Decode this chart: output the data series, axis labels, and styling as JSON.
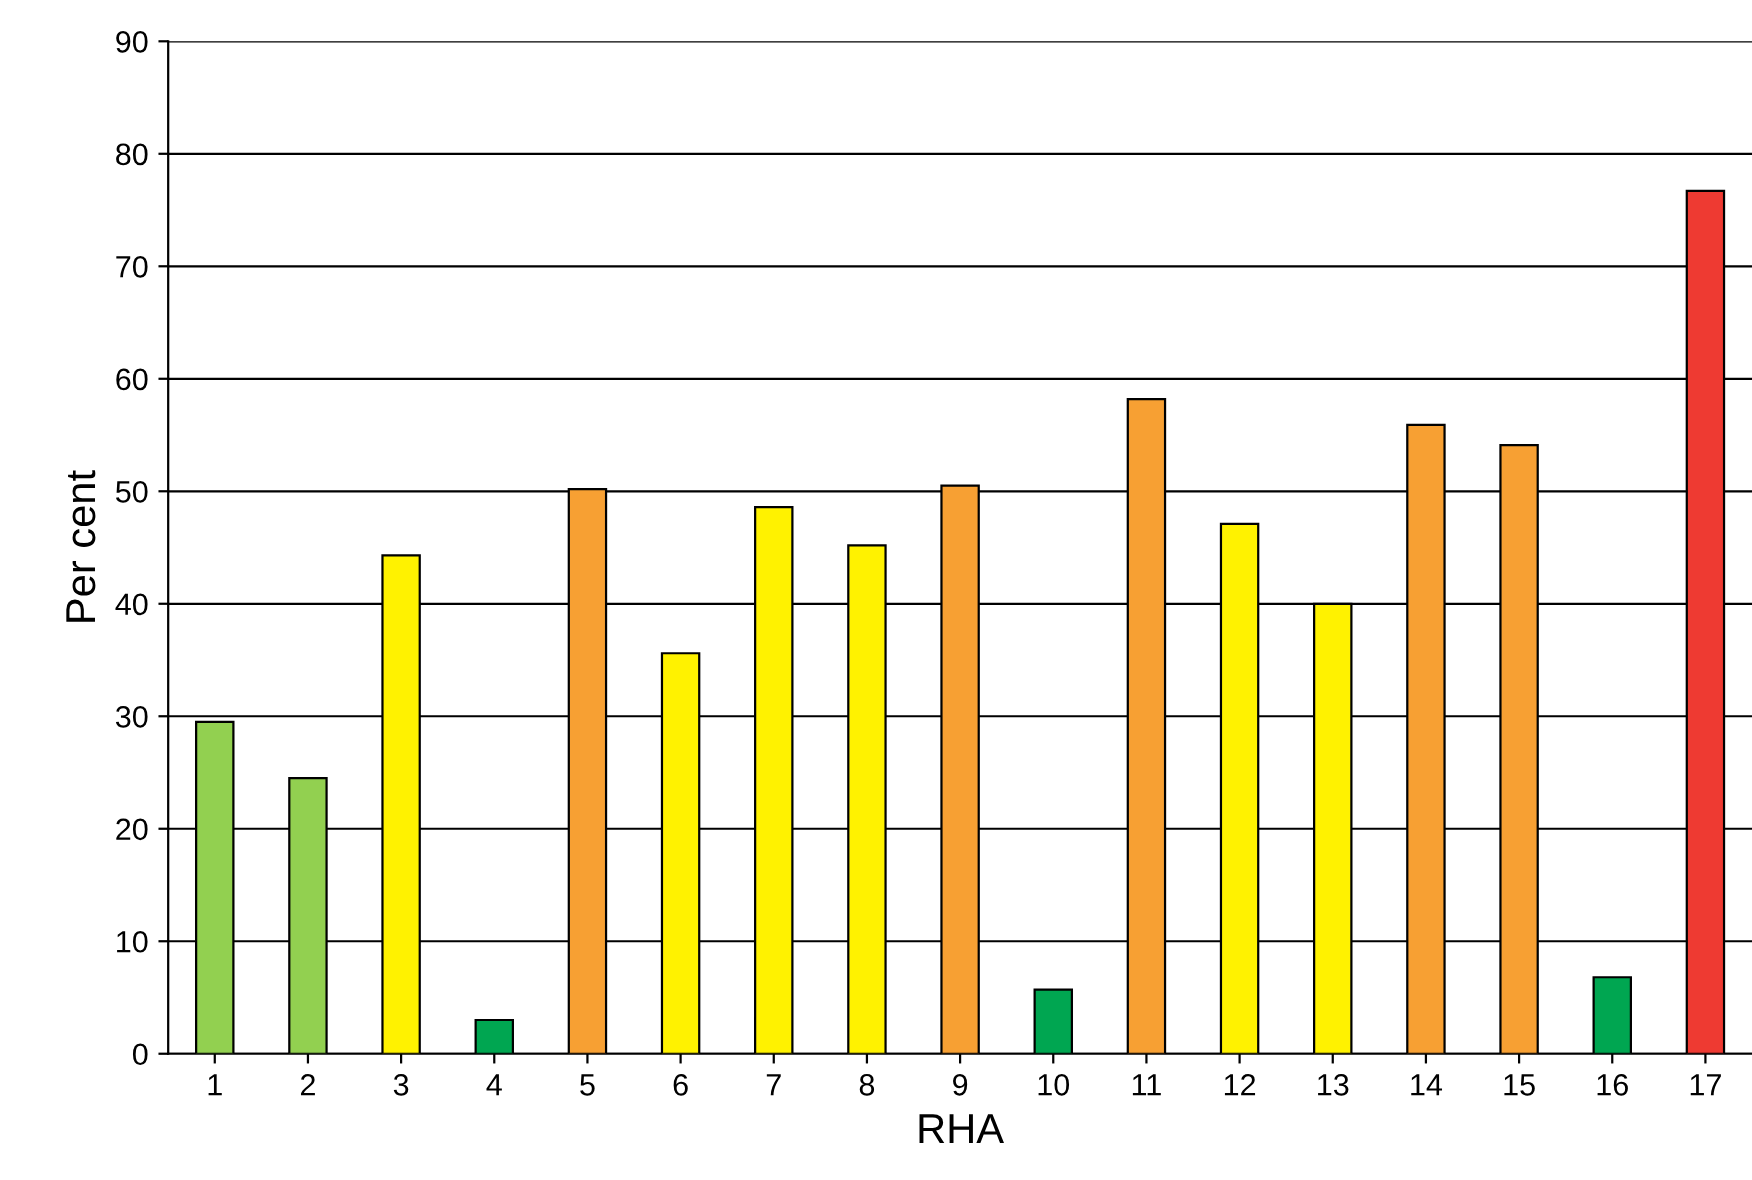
{
  "chart_data": {
    "type": "bar",
    "xlabel": "RHA",
    "ylabel": "Per cent",
    "categories": [
      "1",
      "2",
      "3",
      "4",
      "5",
      "6",
      "7",
      "8",
      "9",
      "10",
      "11",
      "12",
      "13",
      "14",
      "15",
      "16",
      "17"
    ],
    "values": [
      29.5,
      24.5,
      44.3,
      3.0,
      50.2,
      35.6,
      48.6,
      45.2,
      50.5,
      5.7,
      58.2,
      47.1,
      40.0,
      55.9,
      54.1,
      6.8,
      76.7
    ],
    "colors": [
      "#92d050",
      "#92d050",
      "#fff200",
      "#00a651",
      "#f7a033",
      "#fff200",
      "#fff200",
      "#fff200",
      "#f7a033",
      "#00a651",
      "#f7a033",
      "#fff200",
      "#fff200",
      "#f7a033",
      "#f7a033",
      "#00a651",
      "#ee3a32"
    ],
    "ylim": [
      0,
      90
    ],
    "yticks": [
      0,
      10,
      20,
      30,
      40,
      50,
      60,
      70,
      80,
      90
    ],
    "grid": "y"
  }
}
